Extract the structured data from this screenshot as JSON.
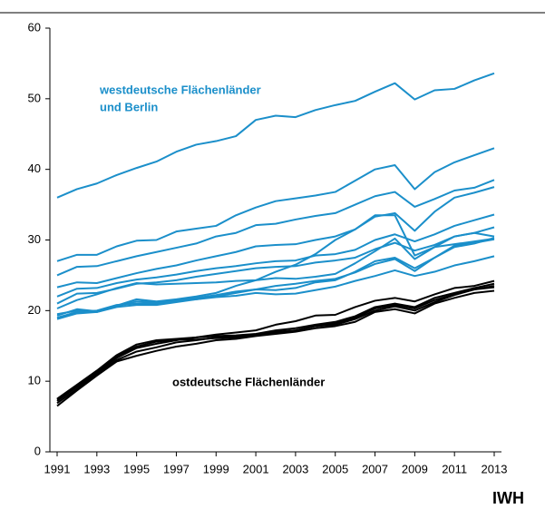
{
  "chart_data": {
    "type": "line",
    "x": [
      1991,
      1992,
      1993,
      1994,
      1995,
      1996,
      1997,
      1998,
      1999,
      2000,
      2001,
      2002,
      2003,
      2004,
      2005,
      2006,
      2007,
      2008,
      2009,
      2010,
      2011,
      2012,
      2013
    ],
    "xlim": [
      1991,
      2013
    ],
    "xticks": [
      1991,
      1993,
      1995,
      1997,
      1999,
      2001,
      2003,
      2005,
      2007,
      2009,
      2011,
      2013
    ],
    "ylim": [
      0,
      60
    ],
    "yticks": [
      0,
      10,
      20,
      30,
      40,
      50,
      60
    ],
    "annotations": [
      "westdeutsche Flächenländer",
      "und Berlin",
      "ostdeutsche Flächenländer"
    ],
    "source": "IWH",
    "series": [
      {
        "color": "#1b8fca",
        "values": [
          36,
          37.2,
          38,
          39.2,
          40.2,
          41.1,
          42.5,
          43.5,
          44,
          44.7,
          47,
          47.6,
          47.4,
          48.4,
          49.1,
          49.7,
          51,
          52.2,
          49.9,
          51.2,
          51.4,
          52.6,
          53.6
        ]
      },
      {
        "color": "#1b8fca",
        "values": [
          27,
          27.9,
          27.9,
          29.1,
          29.9,
          30,
          31.2,
          31.6,
          32,
          33.5,
          34.6,
          35.5,
          35.9,
          36.3,
          36.8,
          38.4,
          40,
          40.6,
          37.2,
          39.6,
          41,
          42,
          43
        ]
      },
      {
        "color": "#1b8fca",
        "values": [
          25,
          26.2,
          26.3,
          27,
          27.7,
          28.3,
          28.9,
          29.5,
          30.5,
          31,
          32.1,
          32.3,
          32.9,
          33.4,
          33.8,
          35,
          36.2,
          36.8,
          34.7,
          35.8,
          37,
          37.4,
          38.5
        ]
      },
      {
        "color": "#1b8fca",
        "values": [
          23.3,
          24,
          23.9,
          24.6,
          25.3,
          25.9,
          26.4,
          27.1,
          27.7,
          28.3,
          29.1,
          29.3,
          29.4,
          30,
          30.5,
          31.5,
          33.3,
          33.8,
          31.3,
          34,
          36,
          36.7,
          37.5
        ]
      },
      {
        "color": "#1b8fca",
        "values": [
          22,
          23.1,
          23.2,
          23.9,
          24.4,
          24.7,
          25.1,
          25.6,
          26,
          26.3,
          26.7,
          27,
          27.1,
          27.8,
          28,
          28.6,
          30,
          30.8,
          29.8,
          30.8,
          32,
          32.8,
          33.6
        ]
      },
      {
        "color": "#1b8fca",
        "values": [
          21,
          22.4,
          22.5,
          23.1,
          23.8,
          24,
          24.3,
          24.8,
          25.2,
          25.6,
          26,
          26.2,
          26.3,
          26.8,
          27.1,
          27.5,
          28.7,
          29.6,
          28.5,
          29.3,
          30.5,
          31,
          31.8
        ]
      },
      {
        "color": "#1b8fca",
        "values": [
          19.3,
          20.2,
          19.9,
          20.7,
          21.6,
          21.3,
          21.6,
          22,
          22.5,
          23.5,
          24.3,
          25.5,
          26.5,
          28,
          30,
          31.5,
          33.5,
          33.5,
          27.8,
          29,
          30.5,
          31,
          30.5
        ]
      },
      {
        "color": "#1b8fca",
        "values": [
          19.5,
          20,
          19.8,
          20.6,
          21.3,
          21.2,
          21.5,
          21.8,
          22.2,
          22.7,
          23,
          22.9,
          23.2,
          24,
          24.3,
          25.5,
          27,
          27.5,
          26,
          27.5,
          29,
          29.5,
          30.3
        ]
      },
      {
        "color": "#1b8fca",
        "values": [
          19,
          19.8,
          20,
          20.8,
          21,
          21,
          21.4,
          21.6,
          22,
          22.5,
          23,
          23.5,
          23.8,
          24.2,
          24.5,
          25.4,
          26.6,
          27.3,
          25.6,
          27.5,
          29.2,
          29.6,
          30.1
        ]
      },
      {
        "color": "#1b8fca",
        "values": [
          18.8,
          19.6,
          19.8,
          20.5,
          20.8,
          20.8,
          21.2,
          21.6,
          21.9,
          22.1,
          22.5,
          22.3,
          22.4,
          22.9,
          23.4,
          24.2,
          24.9,
          25.7,
          24.9,
          25.5,
          26.4,
          27,
          27.7
        ]
      },
      {
        "color": "#1b8fca",
        "values": [
          20.3,
          21.5,
          22.3,
          23.2,
          23.9,
          23.7,
          23.8,
          23.9,
          24,
          24.2,
          24.3,
          24.6,
          24.5,
          24.8,
          25.2,
          26.7,
          28.4,
          30.2,
          27.3,
          29,
          29.4,
          29.8,
          30.2
        ]
      },
      {
        "color": "#000000",
        "values": [
          7.5,
          9.5,
          11.5,
          13.7,
          15.2,
          15.8,
          16,
          16.2,
          16.6,
          16.9,
          17.2,
          18,
          18.5,
          19.3,
          19.4,
          20.5,
          21.4,
          21.8,
          21.3,
          22.3,
          23.2,
          23.5,
          24.2
        ]
      },
      {
        "color": "#000000",
        "values": [
          7.2,
          9.2,
          11.2,
          13.3,
          14.7,
          15.3,
          15.8,
          16.2,
          16.4,
          16.5,
          16.7,
          17.2,
          17.5,
          18,
          18.4,
          19.2,
          20.5,
          21,
          20.5,
          21.8,
          22.5,
          23.2,
          23.8
        ]
      },
      {
        "color": "#000000",
        "values": [
          6.9,
          8.9,
          11,
          13,
          14.2,
          14.8,
          15.5,
          15.8,
          16.2,
          16.4,
          16.6,
          17,
          17.2,
          17.8,
          18,
          18.8,
          20,
          20.6,
          20,
          21.2,
          22.2,
          23,
          23.3
        ]
      },
      {
        "color": "#000000",
        "values": [
          6.5,
          8.7,
          10.8,
          12.8,
          13.6,
          14.3,
          14.9,
          15.3,
          15.8,
          16,
          16.4,
          16.7,
          17,
          17.5,
          17.8,
          18.4,
          19.8,
          20.2,
          19.6,
          21,
          21.8,
          22.5,
          22.8
        ]
      },
      {
        "color": "#000000",
        "values": [
          7.4,
          9.3,
          11.3,
          13.5,
          14.9,
          15.6,
          15.9,
          15.9,
          16.1,
          16.2,
          16.5,
          16.9,
          17.2,
          17.8,
          18.2,
          19,
          20.3,
          20.8,
          20.3,
          21.5,
          22.3,
          23,
          23.5
        ]
      }
    ]
  }
}
